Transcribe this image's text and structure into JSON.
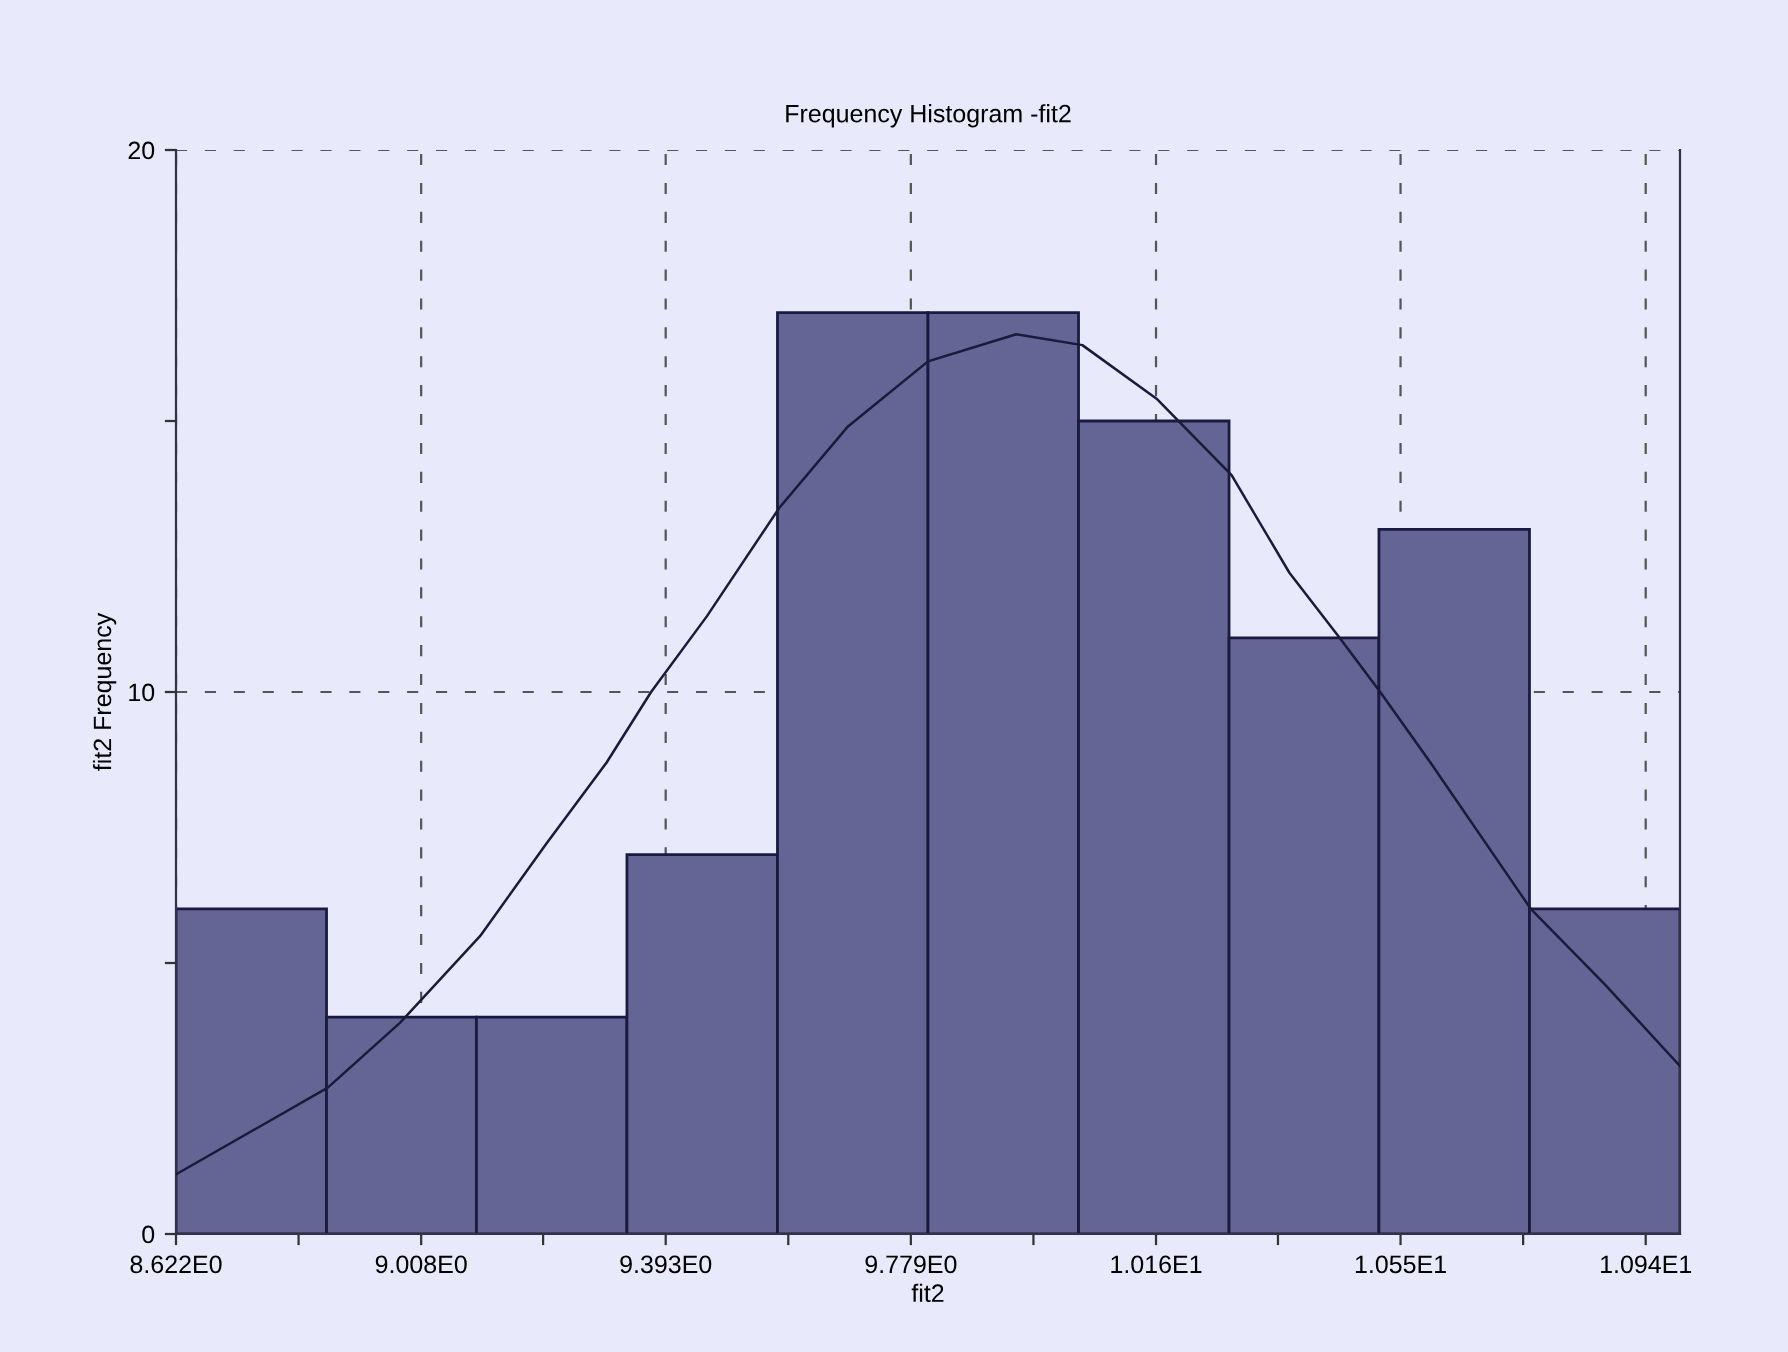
{
  "chart_data": {
    "type": "histogram",
    "title": "Frequency Histogram -fit2",
    "xlabel": "fit2",
    "ylabel": "fit2 Frequency",
    "bins": [
      8.622,
      8.859,
      9.095,
      9.332,
      9.569,
      9.806,
      10.043,
      10.28,
      10.516,
      10.753,
      10.99
    ],
    "values": [
      6,
      4,
      4,
      7,
      17,
      17,
      15,
      11,
      13,
      6
    ],
    "color": "#636594",
    "series": [
      {
        "type": "line",
        "color": "#1a1a3a",
        "x": [
          8.622,
          8.861,
          8.975,
          9.101,
          9.205,
          9.3,
          9.37,
          9.458,
          9.572,
          9.68,
          9.806,
          9.945,
          10.049,
          10.167,
          10.284,
          10.375,
          10.454,
          10.518,
          10.597,
          10.755,
          10.872,
          10.99
        ],
        "values": [
          1.1,
          2.7,
          3.9,
          5.5,
          7.2,
          8.7,
          10.0,
          11.4,
          13.4,
          14.9,
          16.1,
          16.6,
          16.4,
          15.4,
          14.0,
          12.2,
          11.0,
          10.0,
          8.7,
          6.0,
          4.6,
          3.1
        ]
      }
    ],
    "xlim": [
      8.622,
      10.99
    ],
    "ylim": [
      0,
      20
    ],
    "xticks": [
      {
        "value": 8.622,
        "label": "8.622E0"
      },
      {
        "value": 8.815,
        "label": null
      },
      {
        "value": 9.008,
        "label": "9.008E0"
      },
      {
        "value": 9.2,
        "label": null
      },
      {
        "value": 9.393,
        "label": "9.393E0"
      },
      {
        "value": 9.586,
        "label": null
      },
      {
        "value": 9.779,
        "label": "9.779E0"
      },
      {
        "value": 9.972,
        "label": null
      },
      {
        "value": 10.165,
        "label": "1.016E1"
      },
      {
        "value": 10.357,
        "label": null
      },
      {
        "value": 10.55,
        "label": "1.055E1"
      },
      {
        "value": 10.743,
        "label": null
      },
      {
        "value": 10.936,
        "label": "1.094E1"
      }
    ],
    "yticks": [
      0,
      {
        "value": 5,
        "label": null
      },
      10,
      {
        "value": 15,
        "label": null
      },
      20
    ],
    "grid": true,
    "line_style": "solid",
    "marker": "none"
  }
}
